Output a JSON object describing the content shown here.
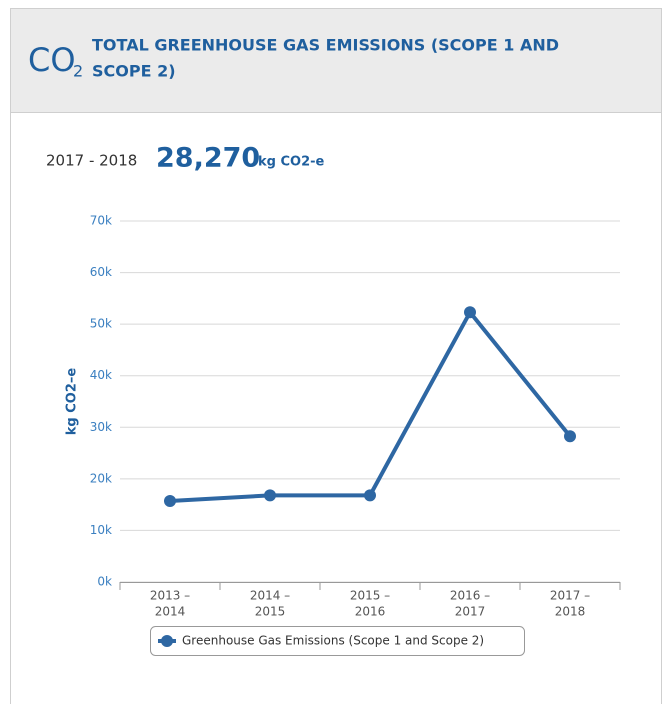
{
  "header": {
    "icon": "CO",
    "icon_sub": "2",
    "title_lines": [
      "TOTAL GREENHOUSE GAS EMISSIONS (SCOPE 1 AND",
      "SCOPE 2)"
    ]
  },
  "summary": {
    "period": "2017 - 2018",
    "value": "28,270",
    "unit": "kg CO2-e"
  },
  "chart_data": {
    "type": "line",
    "y_label": "kg CO2–e",
    "categories": [
      [
        "2013 –",
        "2014"
      ],
      [
        "2014 –",
        "2015"
      ],
      [
        "2015 –",
        "2016"
      ],
      [
        "2016 –",
        "2017"
      ],
      [
        "2017 –",
        "2018"
      ]
    ],
    "series": [
      {
        "name": "Greenhouse Gas Emissions (Scope 1 and Scope 2)",
        "color": "#2e67a3",
        "values": [
          15700,
          16800,
          16800,
          52300,
          28270
        ]
      }
    ],
    "ylim": [
      0,
      70000
    ],
    "yticks": [
      {
        "value": 0,
        "label": "0k"
      },
      {
        "value": 10000,
        "label": "10k"
      },
      {
        "value": 20000,
        "label": "20k"
      },
      {
        "value": 30000,
        "label": "30k"
      },
      {
        "value": 40000,
        "label": "40k"
      },
      {
        "value": 50000,
        "label": "50k"
      },
      {
        "value": 60000,
        "label": "60k"
      },
      {
        "value": 70000,
        "label": "70k"
      }
    ],
    "grid": true
  }
}
